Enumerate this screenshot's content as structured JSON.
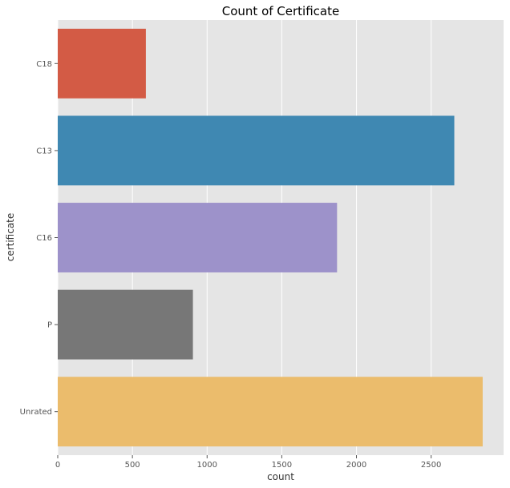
{
  "chart_data": {
    "type": "bar",
    "orientation": "horizontal",
    "title": "Count of Certificate",
    "xlabel": "count",
    "ylabel": "certificate",
    "categories": [
      "C18",
      "C13",
      "C16",
      "P",
      "Unrated"
    ],
    "values": [
      590,
      2655,
      1870,
      905,
      2845
    ],
    "xlim": [
      0,
      2985
    ],
    "xticks": [
      0,
      500,
      1000,
      1500,
      2000,
      2500
    ],
    "grid": true,
    "colors": {
      "background": "#E5E5E5",
      "grid": "#FFFFFF",
      "bars": [
        "#D35B45",
        "#3F88B2",
        "#9D92CA",
        "#777777",
        "#EBBC6C"
      ]
    }
  }
}
